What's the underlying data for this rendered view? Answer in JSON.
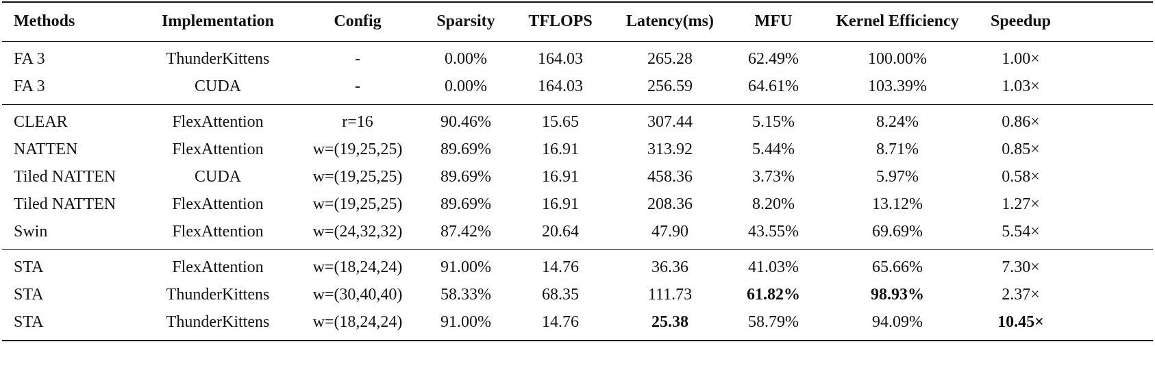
{
  "table": {
    "header": [
      "Methods",
      "Implementation",
      "Config",
      "Sparsity",
      "TFLOPS",
      "Latency(ms)",
      "MFU",
      "Kernel Efficiency",
      "Speedup"
    ],
    "groups": [
      {
        "rows": [
          [
            "FA 3",
            "ThunderKittens",
            "-",
            "0.00%",
            "164.03",
            "265.28",
            "62.49%",
            "100.00%",
            "1.00×"
          ],
          [
            "FA 3",
            "CUDA",
            "-",
            "0.00%",
            "164.03",
            "256.59",
            "64.61%",
            "103.39%",
            "1.03×"
          ]
        ]
      },
      {
        "rows": [
          [
            "CLEAR",
            "FlexAttention",
            "r=16",
            "90.46%",
            "15.65",
            "307.44",
            "5.15%",
            "8.24%",
            "0.86×"
          ],
          [
            "NATTEN",
            "FlexAttention",
            "w=(19,25,25)",
            "89.69%",
            "16.91",
            "313.92",
            "5.44%",
            "8.71%",
            "0.85×"
          ],
          [
            "Tiled NATTEN",
            "CUDA",
            "w=(19,25,25)",
            "89.69%",
            "16.91",
            "458.36",
            "3.73%",
            "5.97%",
            "0.58×"
          ],
          [
            "Tiled NATTEN",
            "FlexAttention",
            "w=(19,25,25)",
            "89.69%",
            "16.91",
            "208.36",
            "8.20%",
            "13.12%",
            "1.27×"
          ],
          [
            "Swin",
            "FlexAttention",
            "w=(24,32,32)",
            "87.42%",
            "20.64",
            "47.90",
            "43.55%",
            "69.69%",
            "5.54×"
          ]
        ]
      },
      {
        "rows": [
          [
            "STA",
            "FlexAttention",
            "w=(18,24,24)",
            "91.00%",
            "14.76",
            "36.36",
            "41.03%",
            "65.66%",
            "7.30×"
          ],
          [
            "STA",
            "ThunderKittens",
            "w=(30,40,40)",
            "58.33%",
            "68.35",
            "111.73",
            {
              "text": "61.82%",
              "bold": true
            },
            {
              "text": "98.93%",
              "bold": true
            },
            "2.37×"
          ],
          [
            "STA",
            "ThunderKittens",
            "w=(18,24,24)",
            "91.00%",
            "14.76",
            {
              "text": "25.38",
              "bold": true
            },
            "58.79%",
            "94.09%",
            {
              "text": "10.45×",
              "bold": true
            }
          ]
        ]
      }
    ]
  }
}
